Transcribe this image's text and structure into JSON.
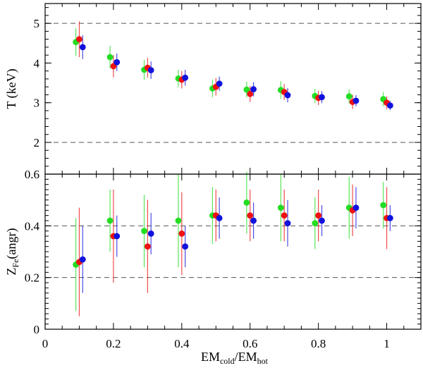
{
  "chart_data": [
    {
      "type": "scatter",
      "panel": "top",
      "ylabel": "T (keV)",
      "xlim": [
        0,
        1.1
      ],
      "ylim": [
        1.2,
        5.5
      ],
      "yticks": [
        2,
        3,
        4,
        5
      ],
      "reference_lines_dashed": [
        2,
        5
      ],
      "grid": false,
      "legend": "none",
      "x": [
        0.1,
        0.2,
        0.3,
        0.4,
        0.5,
        0.6,
        0.7,
        0.8,
        0.9,
        1.0
      ],
      "series": [
        {
          "color": "#22dd22",
          "offset": -0.01,
          "values": [
            4.53,
            4.15,
            3.83,
            3.61,
            3.36,
            3.33,
            3.32,
            3.17,
            3.16,
            3.09
          ],
          "err": [
            0.35,
            0.28,
            0.25,
            0.22,
            0.22,
            0.2,
            0.22,
            0.18,
            0.18,
            0.18
          ]
        },
        {
          "color": "#ee1111",
          "offset": 0.0,
          "values": [
            4.6,
            3.92,
            3.88,
            3.58,
            3.4,
            3.22,
            3.27,
            3.12,
            3.02,
            3.0
          ],
          "err": [
            0.45,
            0.28,
            0.25,
            0.22,
            0.22,
            0.2,
            0.2,
            0.18,
            0.18,
            0.16
          ]
        },
        {
          "color": "#1111dd",
          "offset": 0.01,
          "values": [
            4.4,
            4.02,
            3.82,
            3.63,
            3.48,
            3.34,
            3.19,
            3.14,
            3.05,
            2.93
          ],
          "err": [
            0.3,
            0.22,
            0.22,
            0.2,
            0.18,
            0.18,
            0.18,
            0.15,
            0.14,
            0.12
          ]
        }
      ]
    },
    {
      "type": "scatter",
      "panel": "bottom",
      "ylabel_main": "Z",
      "ylabel_sub": "Fe",
      "ylabel_suffix": "(angr)",
      "xlabel_main1": "EM",
      "xlabel_sub1": "cold",
      "xlabel_sep": "/EM",
      "xlabel_sub2": "hot",
      "xlim": [
        0,
        1.1
      ],
      "ylim": [
        0,
        0.6
      ],
      "xticks": [
        0,
        0.2,
        0.4,
        0.6,
        0.8,
        1
      ],
      "xtick_labels": [
        "0",
        "0.2",
        "0.4",
        "0.6",
        "0.8",
        "1"
      ],
      "yticks": [
        0,
        0.2,
        0.4,
        0.6
      ],
      "ytick_labels": [
        "0",
        "0.2",
        "0.4",
        "0.6"
      ],
      "reference_lines_dashed": [
        0.2,
        0.4
      ],
      "grid": false,
      "legend": "none",
      "x": [
        0.1,
        0.2,
        0.3,
        0.4,
        0.5,
        0.6,
        0.7,
        0.8,
        0.9,
        1.0
      ],
      "series": [
        {
          "color": "#22dd22",
          "offset": -0.01,
          "values": [
            0.25,
            0.42,
            0.38,
            0.42,
            0.44,
            0.49,
            0.47,
            0.41,
            0.47,
            0.48
          ],
          "err": [
            0.18,
            0.12,
            0.14,
            0.18,
            0.11,
            0.12,
            0.13,
            0.1,
            0.12,
            0.09
          ]
        },
        {
          "color": "#ee1111",
          "offset": 0.0,
          "values": [
            0.26,
            0.36,
            0.32,
            0.37,
            0.44,
            0.44,
            0.44,
            0.44,
            0.46,
            0.43
          ],
          "err": [
            0.21,
            0.18,
            0.18,
            0.16,
            0.1,
            0.1,
            0.1,
            0.1,
            0.1,
            0.12
          ]
        },
        {
          "color": "#1111dd",
          "offset": 0.01,
          "values": [
            0.27,
            0.36,
            0.37,
            0.32,
            0.43,
            0.42,
            0.41,
            0.42,
            0.47,
            0.43
          ],
          "err": [
            0.13,
            0.08,
            0.08,
            0.08,
            0.08,
            0.07,
            0.09,
            0.06,
            0.08,
            0.05
          ]
        }
      ]
    }
  ]
}
